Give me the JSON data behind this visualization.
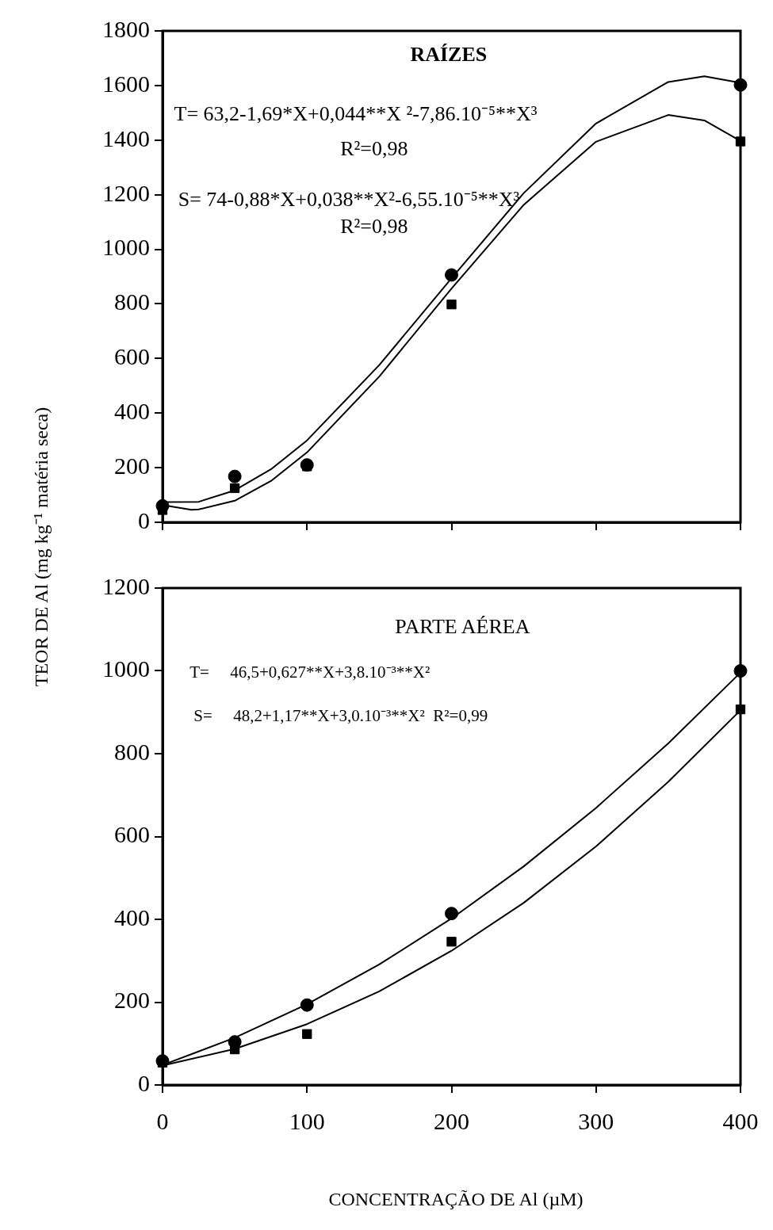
{
  "chart_data": [
    {
      "type": "scatter",
      "ylabel": "TEOR DE Al (mg kg⁻¹  matéria seca)",
      "xlim": [
        0,
        400
      ],
      "xticks": [
        0,
        100,
        200,
        300,
        400
      ],
      "ylim": [
        0,
        1800
      ],
      "yticks": [
        0,
        200,
        400,
        600,
        800,
        1000,
        1200,
        1400,
        1600,
        1800
      ],
      "tick_labels": "y",
      "grid": false,
      "legend": false,
      "annotations": [
        "RAÍZES",
        "T= 63,2-1,69*X+0,044**X ²-7,86.10⁻⁵**X³",
        "R²=0,98",
        "S= 74-0,88*X+0,038**X²-6,55.10⁻⁵**X³",
        "R²=0,98"
      ],
      "series": [
        {
          "type": "line",
          "x": [
            0,
            25,
            50,
            75,
            100,
            150,
            200,
            250,
            300,
            350,
            375,
            400
          ],
          "values": [
            74,
            75,
            117,
            194,
            300,
            576,
            894,
            1206,
            1461,
            1613,
            1634,
            1610
          ],
          "color": "#000000",
          "marker": "none",
          "line_style": "solid"
        },
        {
          "type": "line",
          "x": [
            0,
            20,
            25,
            50,
            75,
            100,
            150,
            200,
            250,
            300,
            350,
            375,
            400
          ],
          "values": [
            63,
            46,
            47,
            79,
            151,
            256,
            534,
            856,
            1163,
            1394,
            1492,
            1472,
            1397
          ],
          "color": "#000000",
          "marker": "none",
          "line_style": "solid"
        },
        {
          "type": "scatter",
          "x": [
            0,
            50,
            100,
            200,
            400
          ],
          "values": [
            60,
            168,
            210,
            906,
            1602
          ],
          "color": "#000000",
          "marker": "circle"
        },
        {
          "type": "scatter",
          "x": [
            0,
            50,
            100,
            200,
            400
          ],
          "values": [
            45,
            125,
            205,
            798,
            1395
          ],
          "color": "#000000",
          "marker": "square"
        }
      ]
    },
    {
      "type": "scatter",
      "xlabel": "CONCENTRAÇÃO DE Al (µM)",
      "xlim": [
        0,
        400
      ],
      "xticks": [
        0,
        100,
        200,
        300,
        400
      ],
      "ylim": [
        0,
        1200
      ],
      "yticks": [
        0,
        200,
        400,
        600,
        800,
        1000,
        1200
      ],
      "grid": false,
      "legend": false,
      "annotations": [
        "PARTE AÉREA",
        "T=     46,5+0,627**X+3,8.10⁻³**X²",
        "S=     48,2+1,17**X+3,0.10⁻³**X²  R²=0,99"
      ],
      "series": [
        {
          "type": "line",
          "x": [
            0,
            50,
            100,
            150,
            200,
            250,
            300,
            350,
            400
          ],
          "values": [
            48,
            114,
            195,
            291,
            402,
            528,
            669,
            825,
            996
          ],
          "color": "#000000",
          "marker": "none",
          "line_style": "solid"
        },
        {
          "type": "line",
          "x": [
            0,
            50,
            100,
            150,
            200,
            250,
            300,
            350,
            400
          ],
          "values": [
            47,
            87,
            147,
            226,
            324,
            440,
            576,
            732,
            905
          ],
          "color": "#000000",
          "marker": "none",
          "line_style": "solid"
        },
        {
          "type": "scatter",
          "x": [
            0,
            50,
            100,
            200,
            400
          ],
          "values": [
            58,
            104,
            193,
            414,
            1000
          ],
          "color": "#000000",
          "marker": "circle"
        },
        {
          "type": "scatter",
          "x": [
            0,
            50,
            100,
            200,
            400
          ],
          "values": [
            54,
            86,
            123,
            346,
            907
          ],
          "color": "#000000",
          "marker": "square"
        }
      ]
    }
  ]
}
